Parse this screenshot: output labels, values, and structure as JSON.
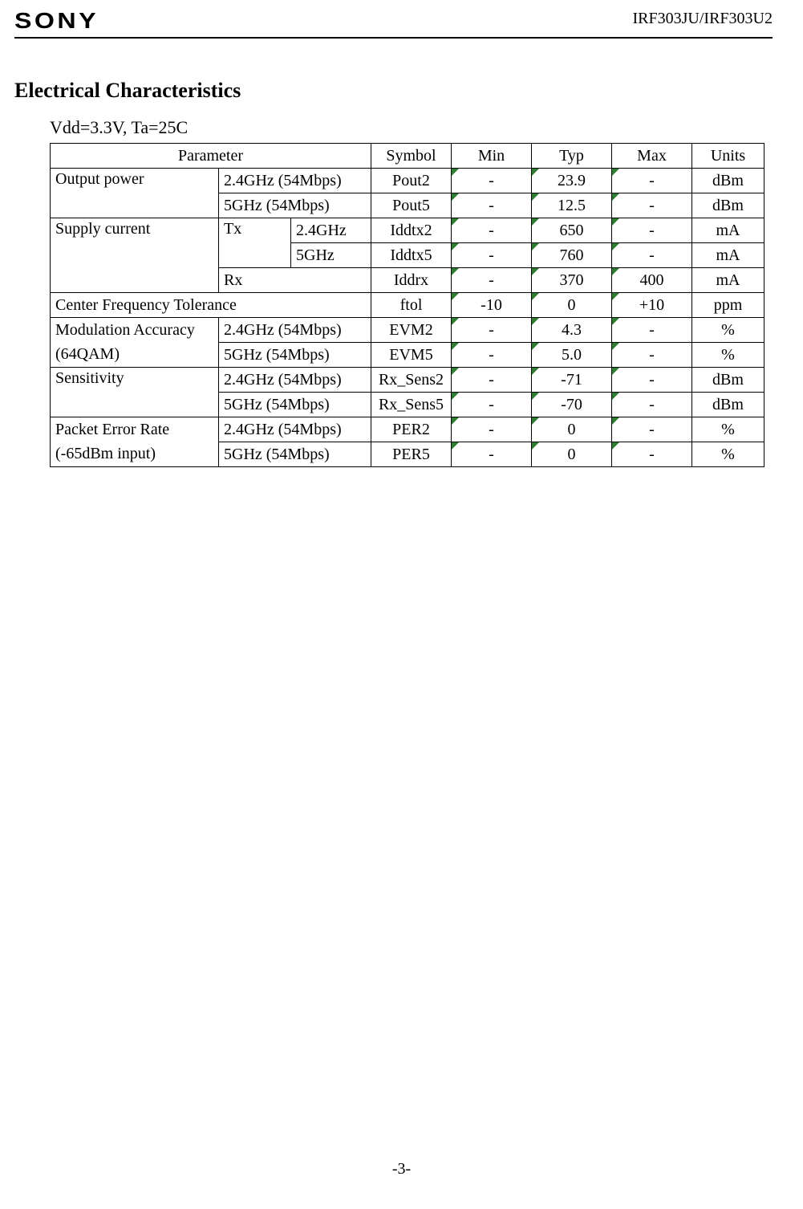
{
  "header": {
    "brand": "SONY",
    "part_number": "IRF303JU/IRF303U2"
  },
  "section_title": "Electrical Characteristics",
  "conditions": "Vdd=3.3V, Ta=25C",
  "table": {
    "headers": {
      "parameter": "Parameter",
      "symbol": "Symbol",
      "min": "Min",
      "typ": "Typ",
      "max": "Max",
      "units": "Units"
    },
    "labels": {
      "output_power": "Output power",
      "supply_current": "Supply current",
      "tx": "Tx",
      "rx": "Rx",
      "g24_54": "2.4GHz (54Mbps)",
      "g5_54": "5GHz (54Mbps)",
      "g24": "2.4GHz",
      "g5": "5GHz",
      "center_freq_tol": "Center Frequency Tolerance",
      "mod_acc": "Modulation Accuracy",
      "mod_acc_sub": "(64QAM)",
      "sensitivity": "Sensitivity",
      "per": "Packet Error Rate",
      "per_sub": "(-65dBm input)"
    },
    "rows": {
      "pout2": {
        "symbol": "Pout2",
        "min": "-",
        "typ": "23.9",
        "max": "-",
        "units": "dBm"
      },
      "pout5": {
        "symbol": "Pout5",
        "min": "-",
        "typ": "12.5",
        "max": "-",
        "units": "dBm"
      },
      "iddtx2": {
        "symbol": "Iddtx2",
        "min": "-",
        "typ": "650",
        "max": "-",
        "units": "mA"
      },
      "iddtx5": {
        "symbol": "Iddtx5",
        "min": "-",
        "typ": "760",
        "max": "-",
        "units": "mA"
      },
      "iddrx": {
        "symbol": "Iddrx",
        "min": "-",
        "typ": "370",
        "max": "400",
        "units": "mA"
      },
      "ftol": {
        "symbol": "ftol",
        "min": "-10",
        "typ": "0",
        "max": "+10",
        "units": "ppm"
      },
      "evm2": {
        "symbol": "EVM2",
        "min": "-",
        "typ": "4.3",
        "max": "-",
        "units": "%"
      },
      "evm5": {
        "symbol": "EVM5",
        "min": "-",
        "typ": "5.0",
        "max": "-",
        "units": "%"
      },
      "rxsens2": {
        "symbol": "Rx_Sens2",
        "min": "-",
        "typ": "-71",
        "max": "-",
        "units": "dBm"
      },
      "rxsens5": {
        "symbol": "Rx_Sens5",
        "min": "-",
        "typ": "-70",
        "max": "-",
        "units": "dBm"
      },
      "per2": {
        "symbol": "PER2",
        "min": "-",
        "typ": "0",
        "max": "-",
        "units": "%"
      },
      "per5": {
        "symbol": "PER5",
        "min": "-",
        "typ": "0",
        "max": "-",
        "units": "%"
      }
    }
  },
  "page_number": "-3-",
  "style": {
    "mark_color": "#2e7d32",
    "border_color": "#000000",
    "background": "#ffffff",
    "font_body_pt": 20,
    "font_title_pt": 26
  }
}
